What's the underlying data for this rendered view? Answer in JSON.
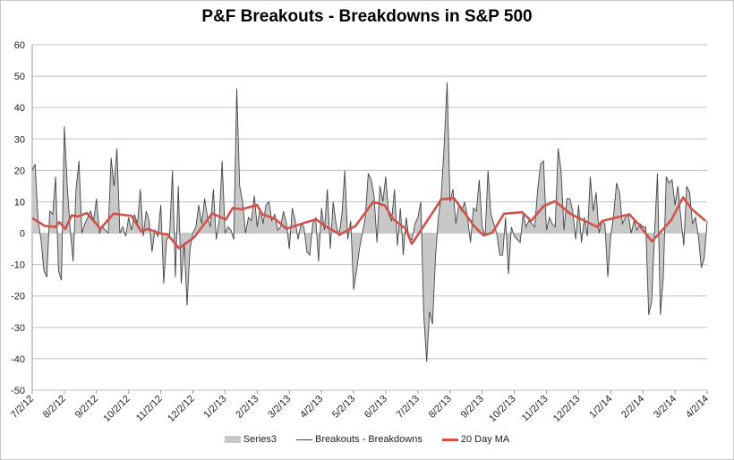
{
  "chart_data": {
    "type": "line",
    "title": "P&F Breakouts - Breakdowns in S&P 500",
    "xlabel": "",
    "ylabel": "",
    "ylim": [
      -50,
      60
    ],
    "yticks": [
      60,
      50,
      40,
      30,
      20,
      10,
      0,
      -10,
      -20,
      -30,
      -40,
      -50
    ],
    "xticks": [
      "7/2/12",
      "8/2/12",
      "9/2/12",
      "10/2/12",
      "11/2/12",
      "12/2/12",
      "1/2/13",
      "2/2/13",
      "3/2/13",
      "4/2/13",
      "5/2/13",
      "6/2/13",
      "7/2/13",
      "8/2/13",
      "9/2/13",
      "10/2/13",
      "11/2/13",
      "12/2/13",
      "1/2/14",
      "2/2/14",
      "3/2/14",
      "4/2/14"
    ],
    "grid": true,
    "legend_position": "bottom",
    "legend": [
      "Series3",
      "Breakouts - Breakdowns",
      "20 Day MA"
    ],
    "colors": {
      "area": "#c8c8c8",
      "line": "#444444",
      "ma": "#d0524a",
      "grid": "#c0c0c0"
    },
    "breakouts_breakdowns": [
      20,
      22,
      4,
      -2,
      -12,
      -14,
      7,
      6,
      18,
      -12,
      -15,
      34,
      15,
      1,
      -9,
      14,
      23,
      0,
      3,
      5,
      7,
      4,
      11,
      0,
      2,
      1,
      0,
      24,
      15,
      27,
      0,
      2,
      -1,
      5,
      1,
      6,
      3,
      14,
      -1,
      7,
      4,
      -6,
      1,
      -1,
      9,
      -16,
      -2,
      -1,
      20,
      -14,
      15,
      -16,
      -3,
      -23,
      -5,
      0,
      2,
      9,
      3,
      11,
      5,
      2,
      14,
      -2,
      4,
      23,
      0,
      2,
      1,
      -2,
      46,
      15,
      10,
      0,
      5,
      4,
      12,
      2,
      8,
      3,
      9,
      10,
      4,
      6,
      1,
      2,
      7,
      3,
      -5,
      8,
      4,
      -2,
      3,
      2,
      -6,
      -7,
      3,
      5,
      -9,
      8,
      1,
      14,
      -5,
      10,
      3,
      -1,
      6,
      20,
      -2,
      4,
      -18,
      -12,
      -5,
      0,
      5,
      19,
      17,
      12,
      -3,
      15,
      10,
      18,
      6,
      4,
      14,
      -4,
      8,
      -7,
      5,
      -2,
      -2,
      3,
      5,
      10,
      -26,
      -41,
      -25,
      -29,
      -8,
      5,
      12,
      28,
      48,
      10,
      14,
      3,
      9,
      7,
      10,
      5,
      -3,
      8,
      7,
      17,
      2,
      -1,
      20,
      6,
      3,
      0,
      -7,
      -7,
      5,
      -13,
      2,
      -1,
      -2,
      -3,
      6,
      2,
      4,
      3,
      2,
      14,
      22,
      23,
      1,
      5,
      3,
      2,
      27,
      20,
      1,
      11,
      11,
      7,
      -2,
      9,
      -3,
      5,
      -1,
      18,
      7,
      13,
      0,
      4,
      3,
      -14,
      -1,
      6,
      16,
      13,
      3,
      5,
      6,
      0,
      4,
      1,
      3,
      2,
      2,
      -26,
      -22,
      0,
      19,
      -26,
      -14,
      18,
      16,
      17,
      9,
      15,
      5,
      -4,
      15,
      13,
      3,
      5,
      -1,
      -11,
      -8,
      4
    ],
    "ma_20day": {
      "t_months_since_start": [
        0,
        0.39,
        0.72,
        0.84,
        1.03,
        1.23,
        1.42,
        1.7,
        2.12,
        2.53,
        3.09,
        3.4,
        3.59,
        3.93,
        4.21,
        4.57,
        5.04,
        5.6,
        6.02,
        6.24,
        6.52,
        6.99,
        7.16,
        7.55,
        7.91,
        8.47,
        8.83,
        9.11,
        9.58,
        10.06,
        10.61,
        10.97,
        11.25,
        11.62,
        11.81,
        12.37,
        12.73,
        13.12,
        13.76,
        14.04,
        14.32,
        14.68,
        15.24,
        15.52,
        15.91,
        16.27,
        16.74,
        17.19,
        17.58,
        17.74,
        18.3,
        18.58,
        18.86,
        19.28,
        19.61,
        19.89,
        20.25,
        20.53,
        20.95
      ],
      "values": [
        4.8,
        2.3,
        2,
        3.5,
        1.4,
        5.7,
        5.3,
        6.4,
        1.4,
        6.2,
        5.5,
        0.5,
        1.4,
        0,
        -0.4,
        -4.8,
        -1.3,
        6.3,
        4.3,
        8,
        7.6,
        9,
        6,
        4.6,
        1.4,
        3.3,
        4.4,
        2.3,
        -0.4,
        2.3,
        10,
        8.8,
        4.3,
        1.4,
        -3.4,
        5.2,
        10.8,
        11.2,
        2.1,
        -0.7,
        0.2,
        6.2,
        6.7,
        3.9,
        8.6,
        10.2,
        6.2,
        3.9,
        2,
        3.9,
        5.3,
        6,
        2.9,
        -2.6,
        1,
        4.3,
        11.4,
        7.6,
        3.9
      ]
    }
  }
}
